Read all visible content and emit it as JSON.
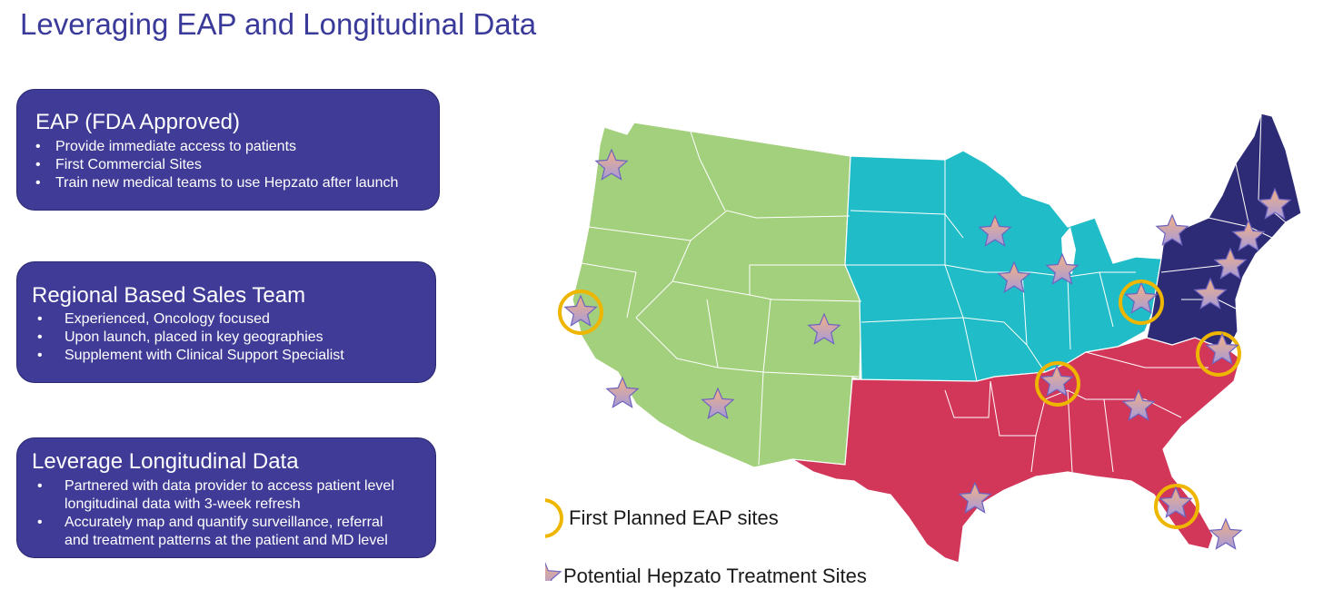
{
  "title": "Leveraging EAP and Longitudinal Data",
  "boxes": [
    {
      "title": "EAP (FDA Approved)",
      "bullets": [
        "Provide immediate access to patients",
        "First Commercial Sites",
        "Train new medical teams to use Hepzato after launch"
      ]
    },
    {
      "title": "Regional Based Sales Team",
      "bullets": [
        "Experienced, Oncology focused",
        "Upon launch, placed in key geographies",
        "Supplement with Clinical Support Specialist"
      ]
    },
    {
      "title": "Leverage Longitudinal Data",
      "bullets": [
        "Partnered with data provider to access patient level",
        "longitudinal data with 3-week refresh",
        "Accurately map and quantify surveillance, referral",
        "and treatment patterns at the patient and MD level"
      ]
    }
  ],
  "legend": {
    "eap_label": "First Planned EAP sites",
    "star_label": "Potential Hepzato Treatment Sites"
  },
  "map": {
    "regions": [
      {
        "name": "west",
        "color": "#a3d07c"
      },
      {
        "name": "midwest",
        "color": "#20bcc7"
      },
      {
        "name": "south",
        "color": "#d2375a"
      },
      {
        "name": "northeast",
        "color": "#2e2b76"
      }
    ],
    "marker_colors": {
      "circle": "#efb600",
      "star_top": "#f5b184",
      "star_bottom": "#a59ad9",
      "star_stroke": "#6e64c0"
    }
  }
}
